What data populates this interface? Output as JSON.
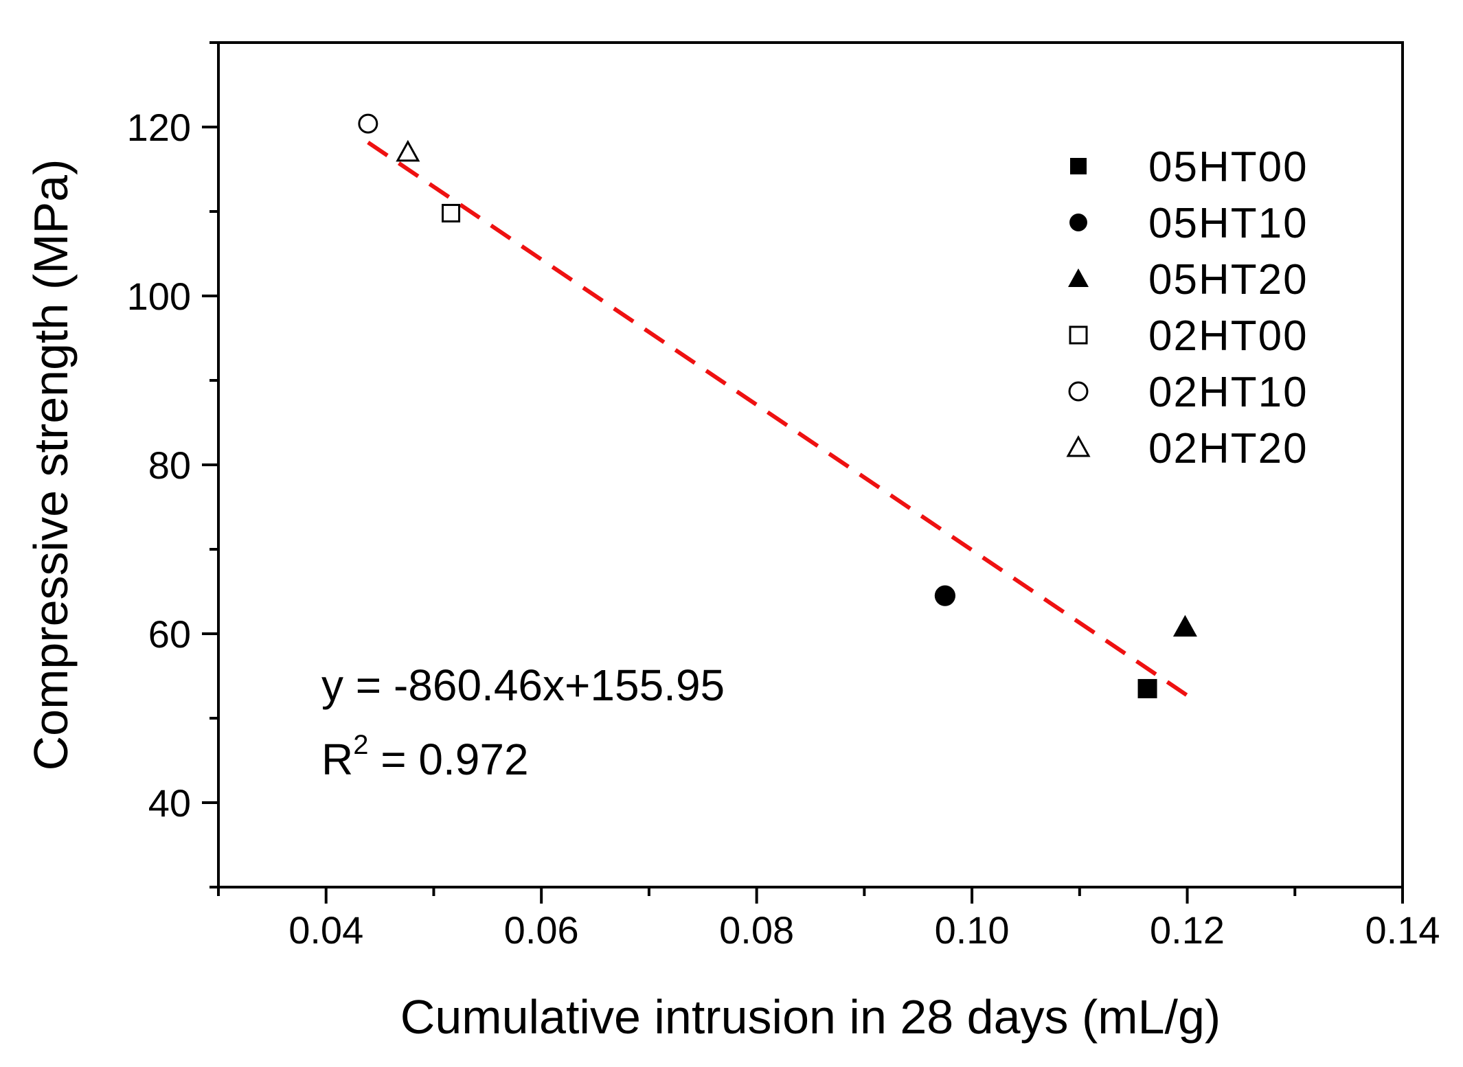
{
  "chart_data": {
    "type": "scatter",
    "xlabel": "Cumulative intrusion in 28 days (mL/g)",
    "ylabel": "Compressive strength (MPa)",
    "xlim": [
      0.03,
      0.14
    ],
    "ylim": [
      30,
      130
    ],
    "x_ticks": [
      0.04,
      0.06,
      0.08,
      0.1,
      0.12,
      0.14
    ],
    "x_tick_labels": [
      "0.04",
      "0.06",
      "0.08",
      "0.10",
      "0.12",
      "0.14"
    ],
    "y_ticks": [
      40,
      60,
      80,
      100,
      120
    ],
    "y_tick_labels": [
      "40",
      "60",
      "80",
      "100",
      "120"
    ],
    "grid": false,
    "legend_position": "top-right",
    "series": [
      {
        "name": "05HT00",
        "marker": "square",
        "filled": true,
        "x": [
          0.1163
        ],
        "y": [
          53.5
        ]
      },
      {
        "name": "05HT10",
        "marker": "circle",
        "filled": true,
        "x": [
          0.0975
        ],
        "y": [
          64.5
        ]
      },
      {
        "name": "05HT20",
        "marker": "triangle",
        "filled": true,
        "x": [
          0.1198
        ],
        "y": [
          60.8
        ]
      },
      {
        "name": "02HT00",
        "marker": "square",
        "filled": false,
        "x": [
          0.0516
        ],
        "y": [
          109.8
        ]
      },
      {
        "name": "02HT10",
        "marker": "circle",
        "filled": false,
        "x": [
          0.0439
        ],
        "y": [
          120.4
        ]
      },
      {
        "name": "02HT20",
        "marker": "triangle",
        "filled": false,
        "x": [
          0.0476
        ],
        "y": [
          117.0
        ]
      }
    ],
    "fit_line": {
      "slope": -860.46,
      "intercept": 155.95,
      "x_range": [
        0.0439,
        0.12
      ],
      "color": "#ee1111",
      "style": "dashed"
    },
    "annotations": {
      "equation": "y = -860.46x+155.95",
      "r2_prefix": "R",
      "r2_sup": "2",
      "r2_value": " = 0.972"
    }
  }
}
